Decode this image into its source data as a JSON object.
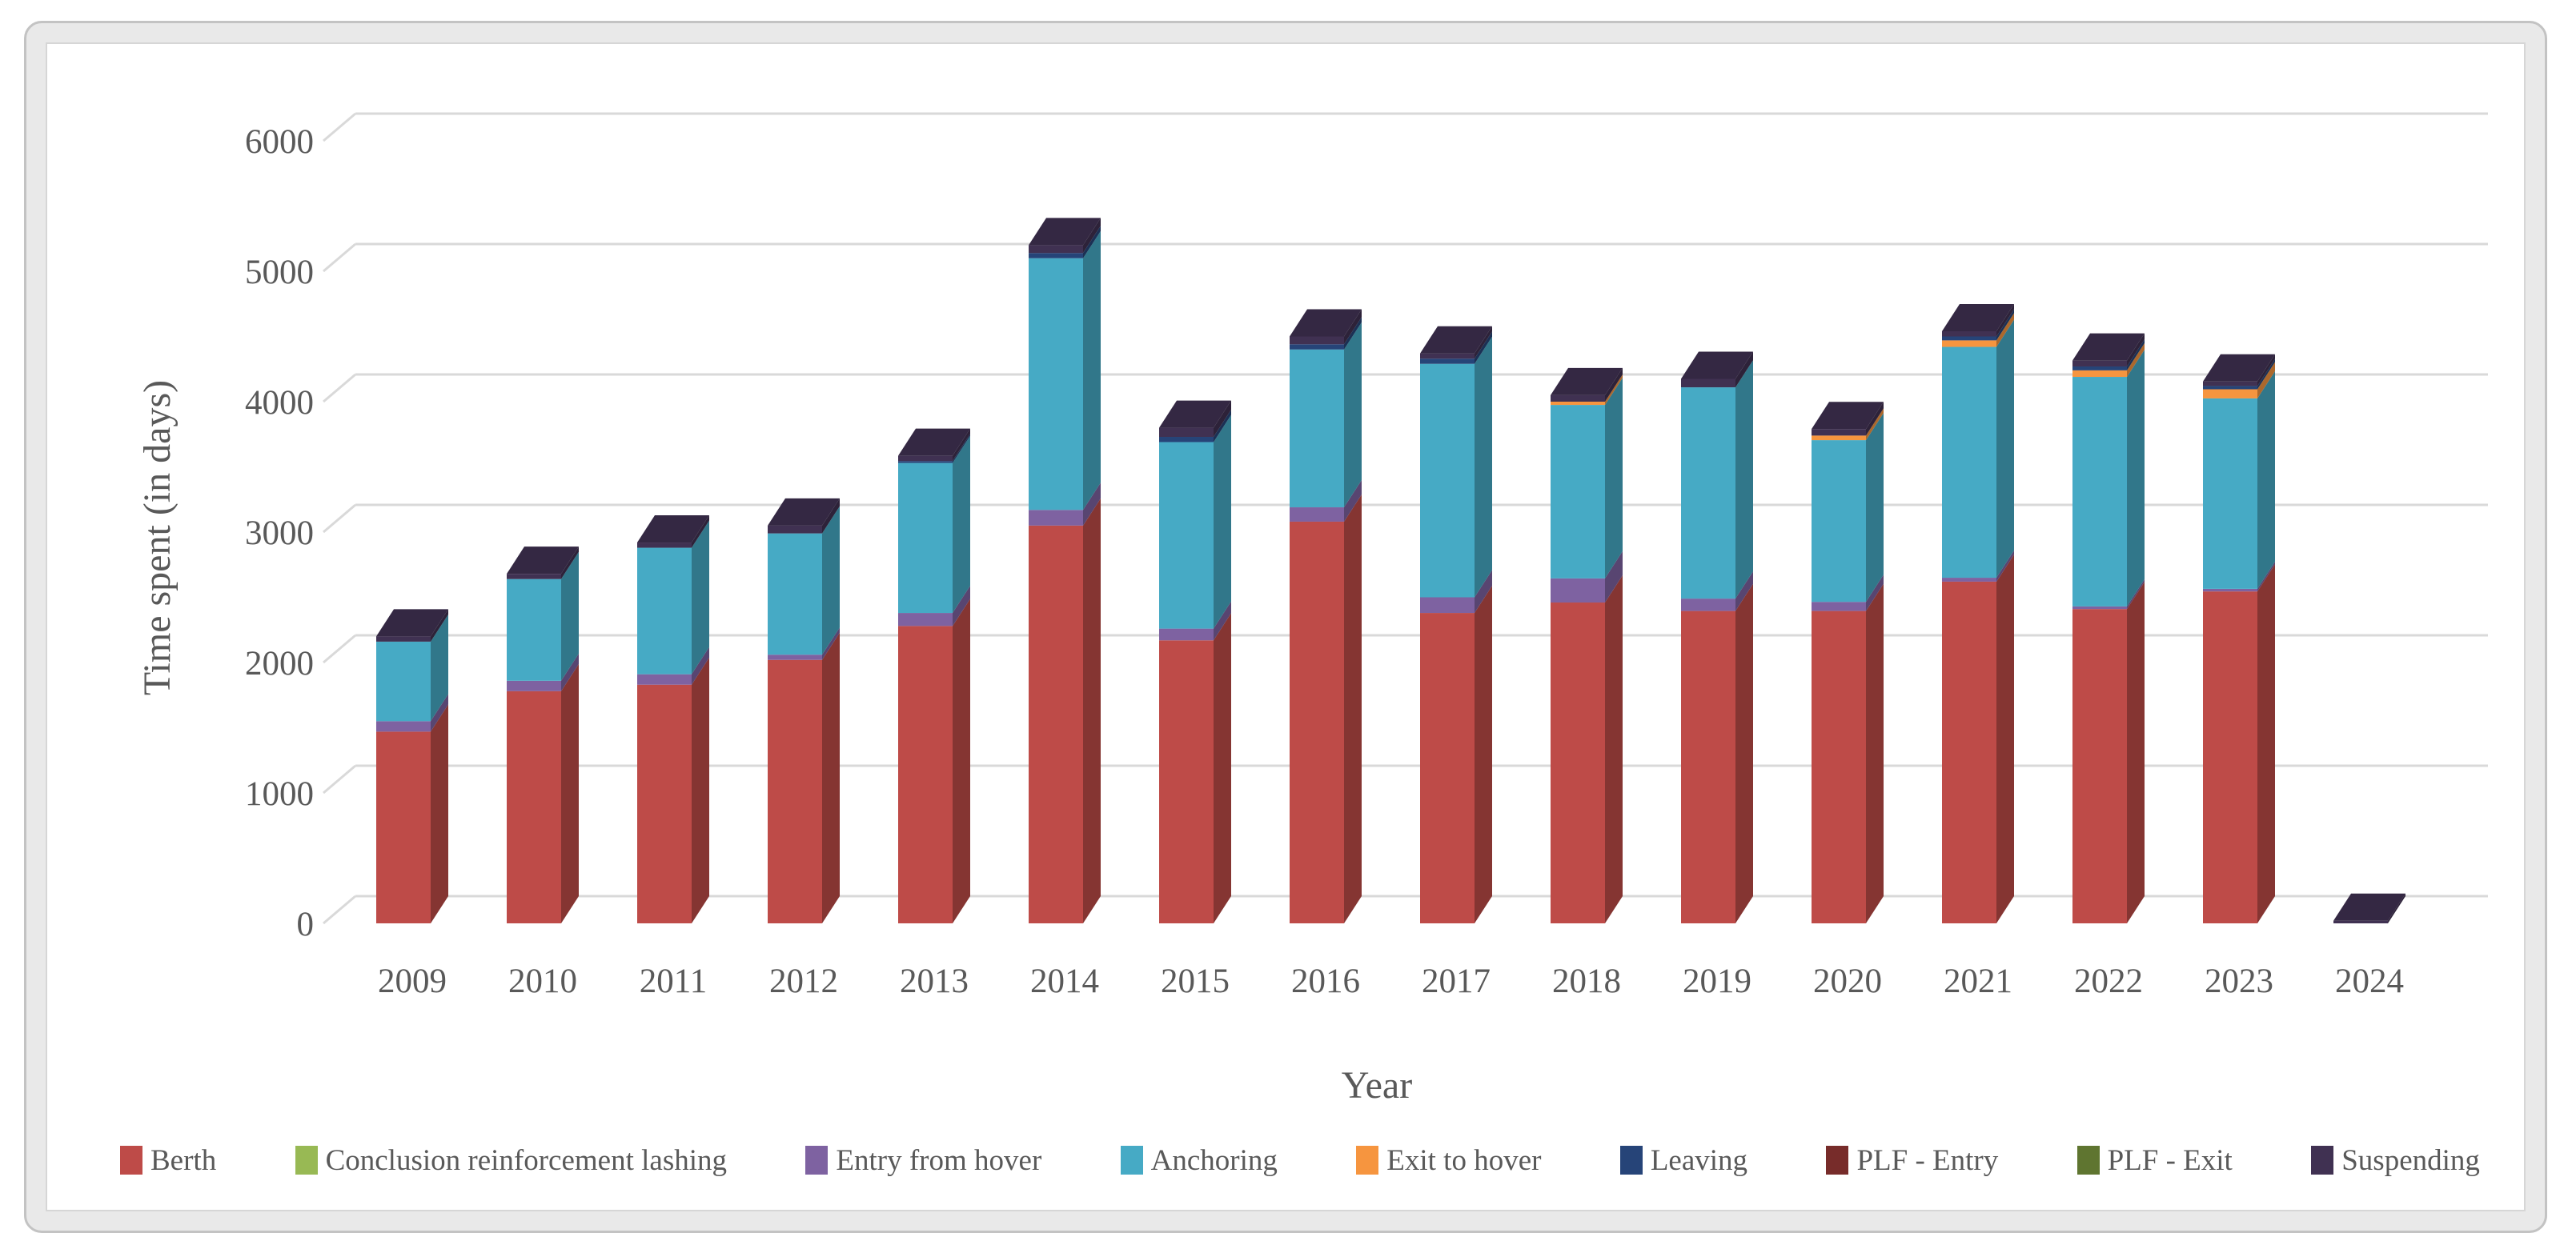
{
  "chart_data": {
    "type": "bar",
    "variant": "3d-stacked-column",
    "title": "",
    "xlabel": "Year",
    "ylabel": "Time spent (in days)",
    "ylim": [
      0,
      6000
    ],
    "y_ticks": [
      0,
      1000,
      2000,
      3000,
      4000,
      5000,
      6000
    ],
    "grid": true,
    "legend_position": "bottom",
    "text_color": "#595959",
    "grid_color": "#d9d9d9",
    "categories": [
      "2009",
      "2010",
      "2011",
      "2012",
      "2013",
      "2014",
      "2015",
      "2016",
      "2017",
      "2018",
      "2019",
      "2020",
      "2021",
      "2022",
      "2023",
      "2024"
    ],
    "series": [
      {
        "name": "Berth",
        "color": "#be4b48",
        "values": [
          1470,
          1780,
          1830,
          2020,
          2280,
          3050,
          2170,
          3080,
          2380,
          2460,
          2395,
          2395,
          2620,
          2410,
          2545,
          0
        ]
      },
      {
        "name": "Conclusion reinforcement lashing",
        "color": "#98b954",
        "values": [
          0,
          0,
          0,
          0,
          0,
          0,
          0,
          0,
          0,
          0,
          0,
          0,
          0,
          0,
          0,
          0
        ]
      },
      {
        "name": "Entry from hover",
        "color": "#7e62a1",
        "values": [
          80,
          80,
          80,
          40,
          100,
          120,
          90,
          110,
          120,
          185,
          95,
          70,
          30,
          20,
          20,
          0
        ]
      },
      {
        "name": "Anchoring",
        "color": "#46aac5",
        "values": [
          610,
          780,
          970,
          930,
          1150,
          1930,
          1430,
          1210,
          1790,
          1330,
          1620,
          1240,
          1770,
          1760,
          1460,
          0
        ]
      },
      {
        "name": "Exit to hover",
        "color": "#f6953f",
        "values": [
          0,
          0,
          0,
          0,
          0,
          0,
          0,
          0,
          0,
          25,
          0,
          35,
          50,
          50,
          70,
          0
        ]
      },
      {
        "name": "Leaving",
        "color": "#264478",
        "values": [
          0,
          0,
          0,
          0,
          15,
          40,
          40,
          40,
          40,
          0,
          0,
          0,
          30,
          30,
          25,
          0
        ]
      },
      {
        "name": "PLF - Entry",
        "color": "#772c2a",
        "values": [
          0,
          0,
          0,
          0,
          0,
          0,
          0,
          0,
          0,
          0,
          0,
          0,
          0,
          0,
          0,
          0
        ]
      },
      {
        "name": "PLF - Exit",
        "color": "#5f7530",
        "values": [
          0,
          0,
          0,
          0,
          0,
          0,
          0,
          0,
          0,
          0,
          0,
          0,
          0,
          0,
          0,
          0
        ]
      },
      {
        "name": "Suspending",
        "color": "#403152",
        "values": [
          40,
          40,
          40,
          60,
          40,
          60,
          70,
          60,
          40,
          50,
          65,
          50,
          40,
          45,
          35,
          20
        ]
      }
    ],
    "totals": [
      2200,
      2680,
      2920,
      3050,
      3585,
      5200,
      3800,
      4500,
      4370,
      4050,
      4175,
      3790,
      4540,
      4315,
      4155,
      20
    ]
  }
}
